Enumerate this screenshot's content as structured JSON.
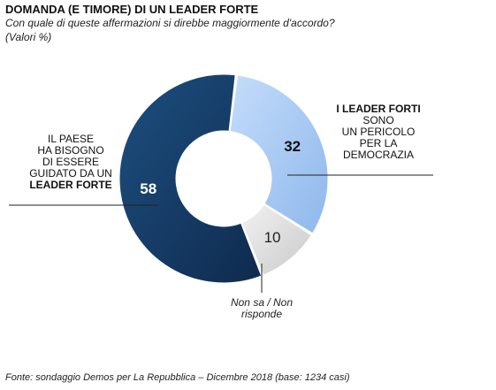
{
  "header": {
    "title": "DOMANDA (E TIMORE) DI UN LEADER FORTE",
    "subtitle": "Con quale di queste affermazioni si direbbe maggiormente d'accordo?",
    "units": "(Valori %)"
  },
  "labels": {
    "left_line1": "IL PAESE",
    "left_line2": "HA BISOGNO",
    "left_line3": "DI ESSERE",
    "left_line4": "GUIDATO DA UN",
    "left_line5": "LEADER FORTE",
    "right_line1": "I LEADER FORTI",
    "right_line2": "SONO",
    "right_line3": "UN PERICOLO",
    "right_line4": "PER LA",
    "right_line5": "DEMOCRAZIA",
    "bottom_line1": "Non sa / Non",
    "bottom_line2": "risponde"
  },
  "footer": "Fonte: sondaggio Demos per La Repubblica – Dicembre 2018 (base: 1234 casi)",
  "chart_data": {
    "type": "pie",
    "title": "DOMANDA (E TIMORE) DI UN LEADER FORTE",
    "donut": true,
    "slices": [
      {
        "label": "I LEADER FORTI SONO UN PERICOLO PER LA DEMOCRAZIA",
        "value": 32,
        "display": "32",
        "color_start": "#c4dcfa",
        "color_end": "#8fb8ec",
        "text_color": "#111111"
      },
      {
        "label": "Non sa / Non risponde",
        "value": 10,
        "display": "10",
        "color_start": "#f2f2f2",
        "color_end": "#c9c9c9",
        "text_color": "#222222"
      },
      {
        "label": "IL PAESE HA BISOGNO DI ESSERE GUIDATO DA UN LEADER FORTE",
        "value": 58,
        "display": "58",
        "color_start": "#1d4f80",
        "color_end": "#0f2a4e",
        "text_color": "#ffffff"
      }
    ]
  }
}
